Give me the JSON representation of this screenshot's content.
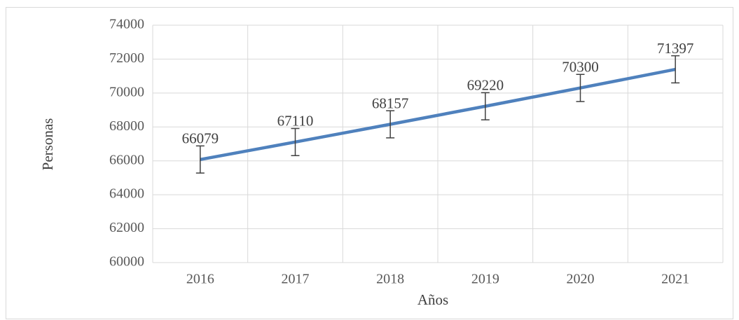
{
  "chart_data": {
    "type": "line",
    "x_label": "Años",
    "y_label": "Personas",
    "categories": [
      "2016",
      "2017",
      "2018",
      "2019",
      "2020",
      "2021"
    ],
    "series": [
      {
        "name": "Personas",
        "color": "#4f81bd",
        "values": [
          66079,
          67110,
          68157,
          69220,
          70300,
          71397
        ],
        "errors": [
          800,
          800,
          800,
          800,
          800,
          800
        ]
      }
    ],
    "ylim": [
      60000,
      74000
    ],
    "yticks": [
      60000,
      62000,
      64000,
      66000,
      68000,
      70000,
      72000,
      74000
    ],
    "grid": true,
    "data_labels": true
  }
}
